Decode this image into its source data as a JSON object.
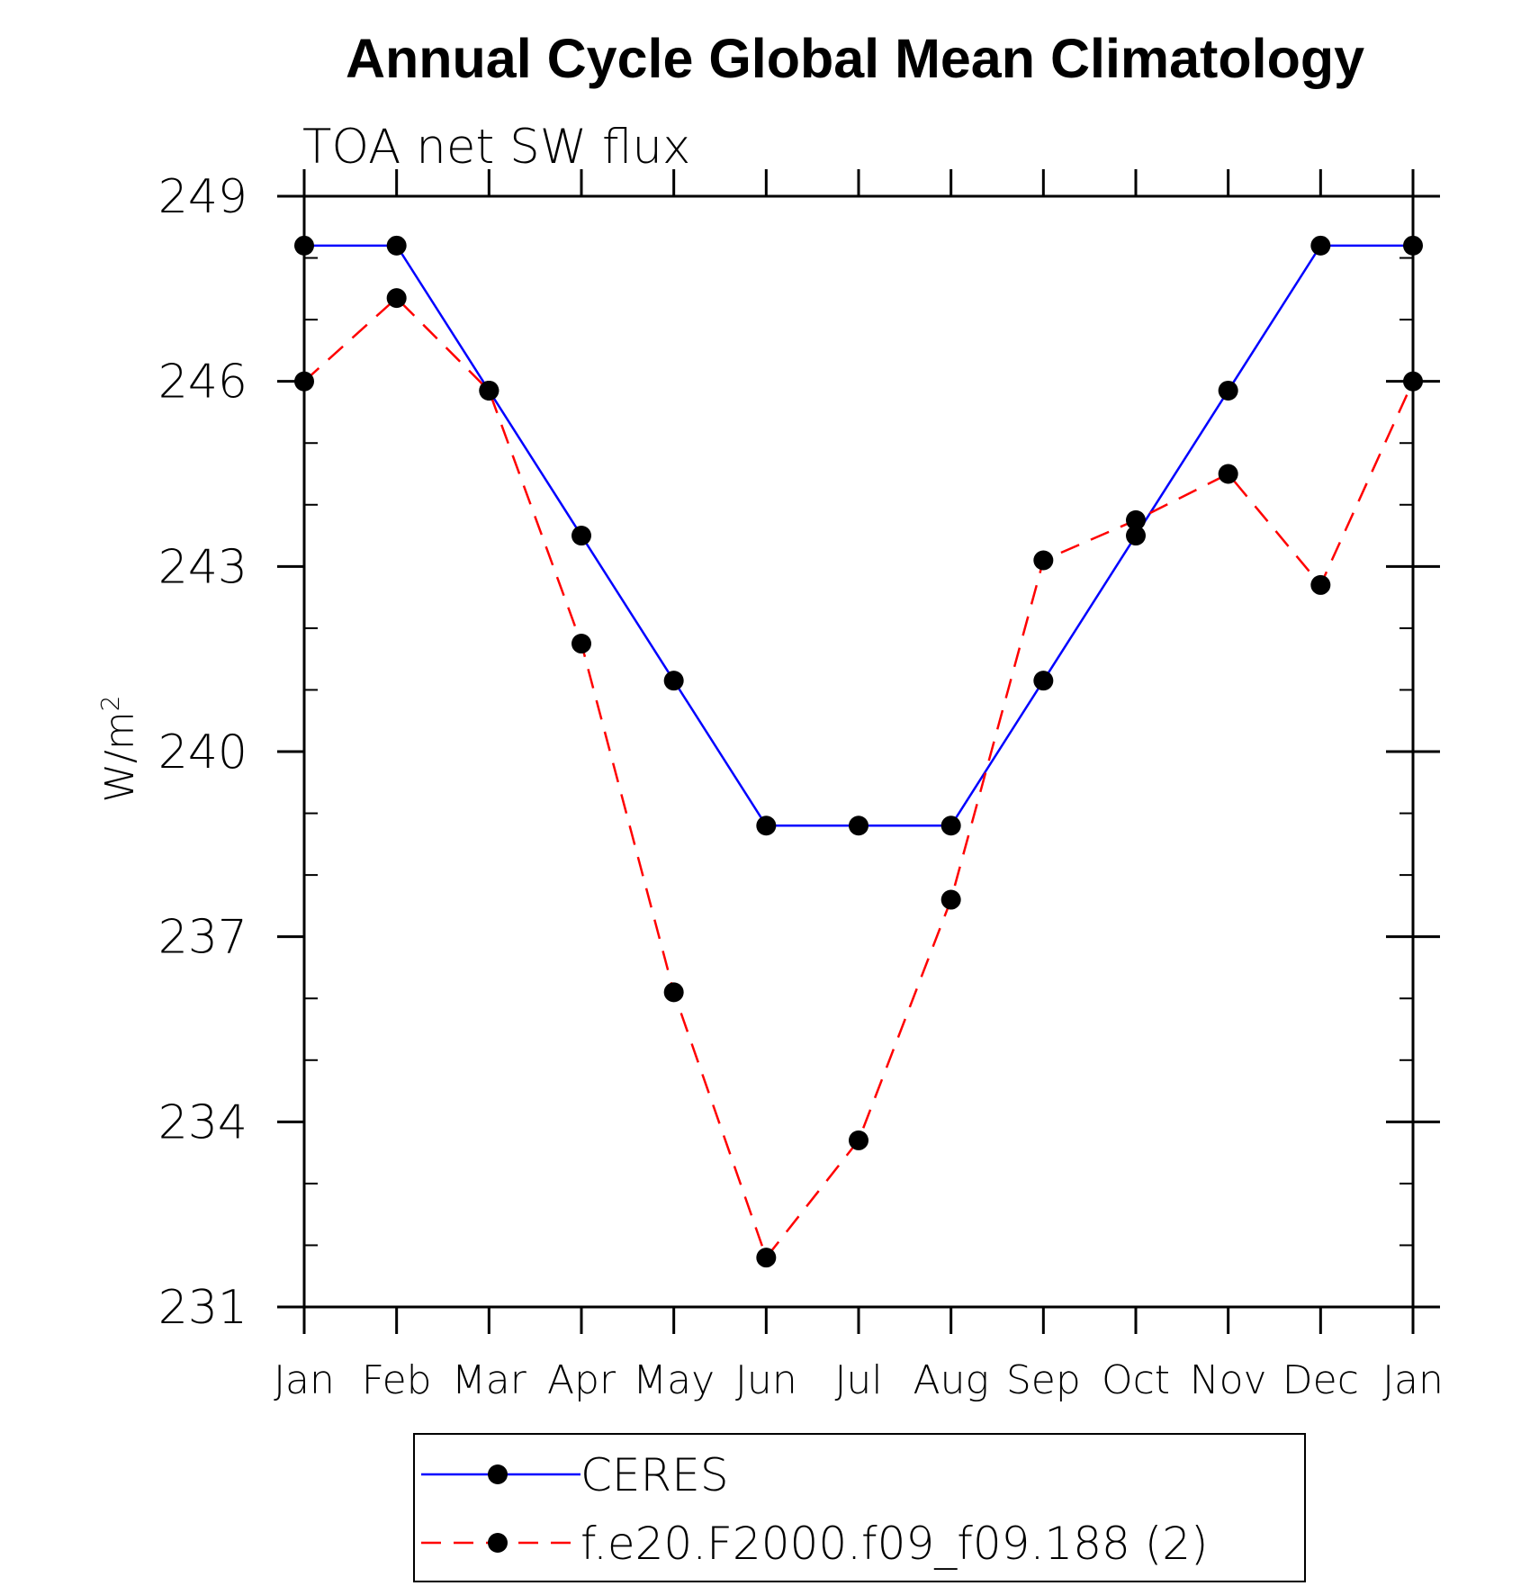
{
  "chart_data": {
    "type": "line",
    "title": "Annual Cycle Global Mean Climatology",
    "subtitle": "TOA net SW flux",
    "ylabel": "W/m",
    "ylabel_superscript": "2",
    "xlabel": "",
    "categories": [
      "Jan",
      "Feb",
      "Mar",
      "Apr",
      "May",
      "Jun",
      "Jul",
      "Aug",
      "Sep",
      "Oct",
      "Nov",
      "Dec",
      "Jan"
    ],
    "ylim": [
      231,
      249
    ],
    "yticks": [
      231,
      234,
      237,
      240,
      243,
      246,
      249
    ],
    "yticks_labels": [
      "231",
      "234",
      "237",
      "240",
      "243",
      "246",
      "249"
    ],
    "y_minor_step": 1,
    "grid": false,
    "legend_position": "bottom",
    "series": [
      {
        "name": "CERES",
        "color": "#0000ff",
        "line_style": "solid",
        "marker": "filled-circle",
        "values": [
          248.2,
          248.2,
          245.85,
          243.5,
          241.15,
          238.8,
          238.8,
          238.8,
          241.15,
          243.5,
          245.85,
          248.2,
          248.2
        ]
      },
      {
        "name": "f.e20.F2000.f09_f09.188 (2)",
        "color": "#ff0000",
        "line_style": "dashed",
        "marker": "filled-circle",
        "values": [
          246.0,
          247.35,
          245.85,
          241.75,
          236.1,
          231.8,
          233.7,
          237.6,
          243.1,
          243.75,
          244.5,
          242.7,
          246.0
        ]
      }
    ]
  }
}
